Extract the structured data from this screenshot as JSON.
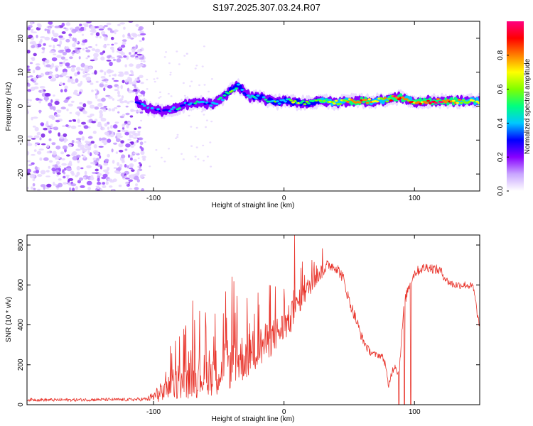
{
  "title": "S197.2025.307.03.24.R07",
  "chart_data": [
    {
      "type": "heatmap",
      "title": "",
      "xlabel": "Height of straight line (km)",
      "ylabel": "Frequency (Hz)",
      "xlim": [
        -197,
        150
      ],
      "ylim": [
        -25,
        25
      ],
      "xticks": [
        -100,
        0,
        100
      ],
      "yticks": [
        -20,
        -10,
        0,
        10,
        20
      ],
      "colorbar": {
        "label": "Normalized spectral amplitude",
        "range": [
          0.0,
          1.0
        ],
        "ticks": [
          0.0,
          0.2,
          0.4,
          0.6,
          0.8
        ],
        "tick_labels": [
          "0.0",
          "0.2",
          "0.4",
          "0.6",
          "0.8"
        ],
        "colors": [
          "#ffffff",
          "#c9a6ff",
          "#8800ff",
          "#0000ff",
          "#00c8ff",
          "#00ff80",
          "#80ff00",
          "#ffff00",
          "#ff8000",
          "#ff0000",
          "#ff0080"
        ]
      },
      "noise_region_x": [
        -197,
        -113
      ],
      "ridge": {
        "x": [
          -113,
          -105,
          -95,
          -85,
          -75,
          -65,
          -55,
          -48,
          -40,
          -35,
          -30,
          -25,
          -20,
          -15,
          -10,
          -5,
          0,
          10,
          20,
          30,
          40,
          50,
          60,
          70,
          80,
          85,
          90,
          95,
          100,
          110,
          120,
          130,
          140,
          150
        ],
        "freq": [
          1.5,
          -0.5,
          -1.5,
          -1.0,
          0.5,
          1.0,
          0.5,
          2.0,
          5.0,
          6.0,
          4.0,
          2.5,
          3.0,
          2.0,
          1.5,
          1.0,
          2.0,
          1.0,
          1.0,
          1.5,
          1.0,
          1.5,
          1.5,
          1.5,
          2.0,
          2.5,
          2.5,
          2.0,
          1.0,
          1.5,
          1.5,
          1.5,
          1.5,
          1.5
        ],
        "amplitude": [
          0.25,
          0.3,
          0.35,
          0.35,
          0.4,
          0.4,
          0.35,
          0.4,
          0.5,
          0.45,
          0.4,
          0.4,
          0.45,
          0.4,
          0.45,
          0.5,
          0.5,
          0.55,
          0.55,
          0.6,
          0.65,
          0.75,
          0.85,
          0.7,
          0.7,
          0.9,
          0.85,
          0.7,
          0.8,
          0.85,
          0.9,
          0.8,
          0.65,
          0.6
        ]
      }
    },
    {
      "type": "line",
      "title": "",
      "xlabel": "Height of straight line (km)",
      "ylabel": "SNR (10 * v/v)",
      "xlim": [
        -197,
        150
      ],
      "ylim": [
        0,
        850
      ],
      "xticks": [
        -100,
        0,
        100
      ],
      "yticks": [
        0,
        200,
        400,
        600,
        800
      ],
      "series": [
        {
          "name": "SNR",
          "color": "#e8332a",
          "x": [
            -197,
            -180,
            -160,
            -140,
            -120,
            -105,
            -100,
            -90,
            -80,
            -70,
            -60,
            -50,
            -40,
            -30,
            -20,
            -10,
            0,
            5,
            10,
            20,
            30,
            35,
            40,
            45,
            50,
            55,
            60,
            65,
            70,
            75,
            78,
            80,
            82,
            85,
            88,
            92,
            95,
            100,
            105,
            110,
            115,
            120,
            125,
            130,
            140,
            145,
            150
          ],
          "values": [
            25,
            24,
            24,
            26,
            25,
            28,
            40,
            80,
            110,
            130,
            150,
            170,
            210,
            240,
            280,
            330,
            390,
            430,
            500,
            600,
            680,
            700,
            690,
            640,
            520,
            430,
            330,
            270,
            250,
            245,
            200,
            80,
            150,
            200,
            150,
            500,
            580,
            660,
            680,
            690,
            680,
            670,
            620,
            600,
            600,
            590,
            380
          ],
          "spread": [
            8,
            8,
            8,
            8,
            8,
            10,
            30,
            60,
            80,
            100,
            110,
            120,
            130,
            120,
            110,
            90,
            80,
            80,
            60,
            50,
            40,
            30,
            30,
            30,
            30,
            30,
            25,
            20,
            15,
            15,
            20,
            20,
            20,
            20,
            20,
            25,
            25,
            25,
            25,
            25,
            25,
            25,
            20,
            20,
            20,
            20,
            30
          ],
          "spikes": [
            {
              "x": 8,
              "value": 850
            },
            {
              "x": -40,
              "value": 640
            },
            {
              "x": -20,
              "value": 560
            },
            {
              "x": -70,
              "value": 520
            },
            {
              "x": 88,
              "value": 0
            },
            {
              "x": 92,
              "value": 0
            },
            {
              "x": 97,
              "value": 0
            }
          ]
        }
      ]
    }
  ]
}
